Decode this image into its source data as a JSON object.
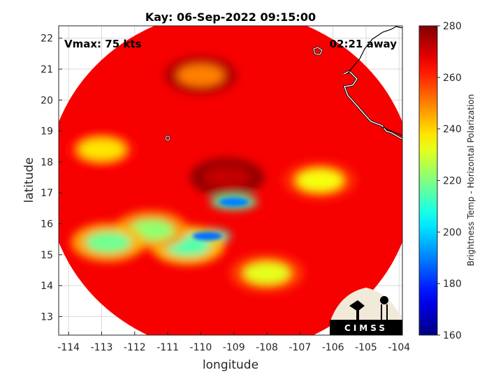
{
  "chart_data": {
    "type": "heatmap",
    "title": "Kay: 06-Sep-2022 09:15:00",
    "annotations": {
      "left": "Vmax: 75 kts",
      "right": "02:21 away"
    },
    "xlabel": "longitude",
    "ylabel": "latitude",
    "xlim": [
      -114.3,
      -103.9
    ],
    "ylim": [
      12.4,
      22.4
    ],
    "xticks": [
      -114,
      -113,
      -112,
      -111,
      -110,
      -109,
      -108,
      -107,
      -106,
      -105,
      -104
    ],
    "yticks": [
      13,
      14,
      15,
      16,
      17,
      18,
      19,
      20,
      21,
      22
    ],
    "grid": true,
    "colorbar": {
      "label": "Brightness Temp - Horizontal Polarization",
      "range": [
        160,
        280
      ],
      "ticks": [
        160,
        180,
        200,
        220,
        240,
        260,
        280
      ],
      "colormap": "jet"
    },
    "swath": {
      "center_lon": -109.1,
      "center_lat": 17.35,
      "radius_deg_lon": 5.55,
      "radius_deg_lat": 5.55,
      "background_value": 266
    },
    "features": [
      {
        "name": "eye",
        "lon": -109.2,
        "lat": 17.5,
        "value": 272
      },
      {
        "name": "inner-eyewall-north",
        "lon": -109.0,
        "lat": 16.7,
        "value": 190
      },
      {
        "name": "inner-eyewall-south",
        "lon": -109.8,
        "lat": 15.6,
        "value": 188
      },
      {
        "name": "band-south",
        "lon": -110.4,
        "lat": 15.3,
        "value": 215
      },
      {
        "name": "band-southwest",
        "lon": -111.5,
        "lat": 15.8,
        "value": 222
      },
      {
        "name": "band-far-southwest",
        "lon": -112.8,
        "lat": 15.4,
        "value": 218
      },
      {
        "name": "band-southeast",
        "lon": -108.0,
        "lat": 14.4,
        "value": 232
      },
      {
        "name": "band-east",
        "lon": -106.4,
        "lat": 17.4,
        "value": 234
      },
      {
        "name": "band-west",
        "lon": -113.0,
        "lat": 18.4,
        "value": 238
      },
      {
        "name": "band-north",
        "lon": -110.0,
        "lat": 20.8,
        "value": 250
      }
    ],
    "logo": "CIMSS"
  },
  "colors": {
    "coastline": "#ffffff",
    "coastline_outline": "#000000",
    "logo_bg": "#000000",
    "grid": "#d9d9d9"
  }
}
